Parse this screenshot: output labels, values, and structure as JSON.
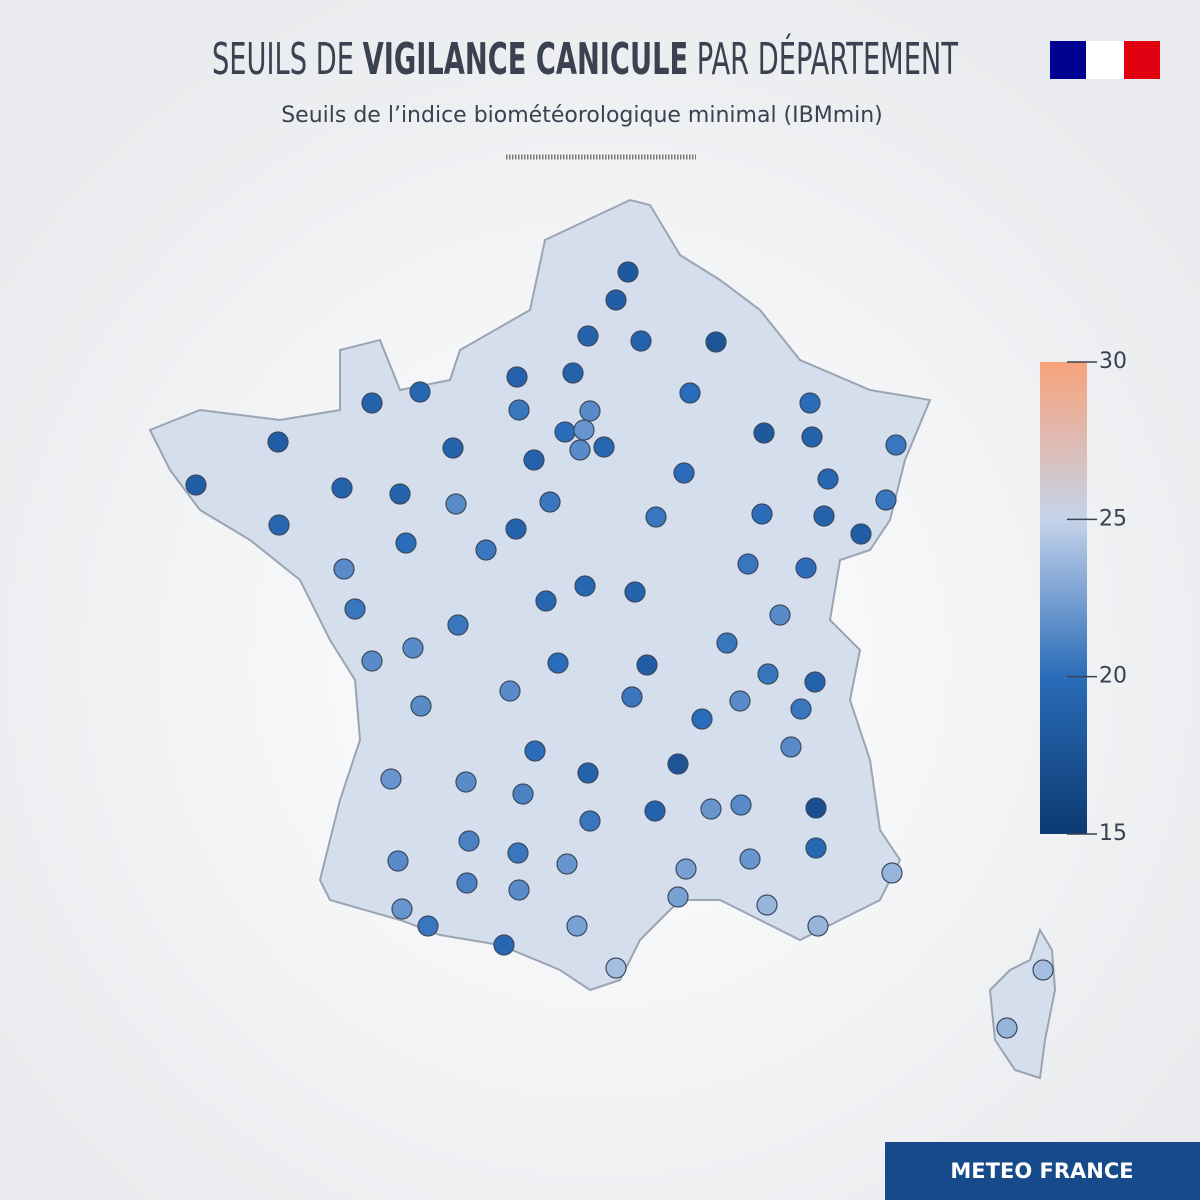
{
  "map": {
    "title_parts": [
      "SEUILS DE ",
      "VIGILANCE CANICULE",
      " PAR DÉPARTEMENT"
    ],
    "subtitle": "Seuils de l’indice biométéorologique minimal (IBMmin)",
    "legend": {
      "range": [
        15,
        30
      ],
      "ticks": [
        15,
        20,
        25,
        30
      ],
      "colors": [
        "#0d3b72",
        "#2a6cb9",
        "#c5d3ea",
        "#f9a27a"
      ]
    },
    "values": [
      18,
      18.5,
      19,
      19,
      17.5,
      19.5,
      19,
      19,
      19,
      20,
      20,
      20.5,
      21.5,
      20,
      22,
      18,
      19,
      18.5,
      19,
      21.5,
      19.5,
      19,
      20,
      19.5,
      20.5,
      18.5,
      19,
      19,
      21.5,
      20.5,
      20.5,
      19.5,
      20.5,
      20,
      19,
      19,
      18.5,
      20,
      20.5,
      21.5,
      20.5,
      20,
      19.5,
      19,
      19.5,
      20.5,
      20.5,
      21.5,
      21.5,
      20.5,
      21.5,
      20,
      18.5,
      20.5,
      19,
      21.5,
      20.5,
      21.5,
      21.5,
      20.5,
      20,
      21.5,
      20,
      17.5,
      19,
      22,
      21.5,
      21,
      19,
      22,
      21.5,
      17,
      20.5,
      21,
      19.5,
      20.5,
      22,
      21.5,
      22,
      22.5,
      23.5,
      21,
      21.5,
      22.5,
      22,
      23.5,
      20.5,
      22.5,
      23.5,
      19.5,
      24,
      24,
      23.5
    ],
    "footer": "METEO FRANCE"
  }
}
